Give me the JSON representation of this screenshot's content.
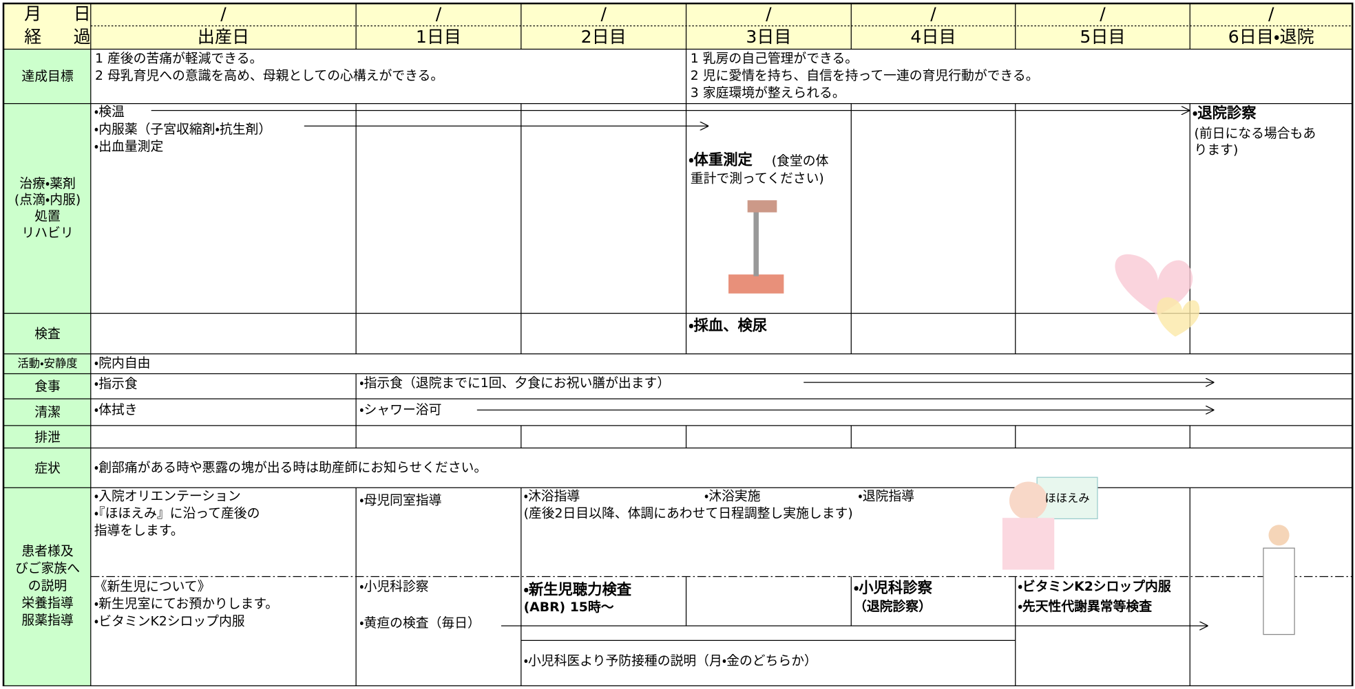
{
  "header": {
    "month": "月",
    "day": "日",
    "course": [
      "経",
      "過"
    ],
    "dates": [
      "/",
      "/",
      "/",
      "/",
      "/",
      "/",
      "/"
    ],
    "days": [
      "出産日",
      "1日目",
      "2日目",
      "3日目",
      "4日目",
      "5日目",
      "6日目・退院"
    ]
  },
  "goals": {
    "label": "達成目標",
    "left": [
      "1 産後の苦痛が軽減できる。",
      "2 母乳育児への意識を高め、母親としての心構えができる。"
    ],
    "right": [
      "1 乳房の自己管理ができる。",
      "2 児に愛情を持ち、自信を持って一連の育児行動ができる。",
      "3 家庭環境が整えられる。"
    ]
  },
  "treatment": {
    "label": [
      "治療・薬剤",
      "(点滴・内服)",
      "処置",
      "リハビリ"
    ],
    "day0": [
      "・検温",
      "・内服薬（子宮収縮剤・抗生剤）",
      "・出血量測定"
    ],
    "day3_title": "・体重測定",
    "day3": [
      "(食堂の体",
      "重計で測ってください)"
    ],
    "day6_title": "・退院診察",
    "day6": [
      "(前日になる場合もあ",
      "ります)"
    ]
  },
  "tests": {
    "label": "検査",
    "day3": "・採血、検尿"
  },
  "activity": {
    "label": "活動・安静度",
    "text": "・院内自由"
  },
  "meals": {
    "label": "食事",
    "day0": "・指示食",
    "day1": "・指示食（退院までに1回、夕食にお祝い膳が出ます）"
  },
  "hygiene": {
    "label": "清潔",
    "day0": "・体拭き",
    "day1": "・シャワー浴可"
  },
  "excretion": {
    "label": "排泄"
  },
  "symptoms": {
    "label": "症状",
    "text": "・創部痛がある時や悪露の塊が出る時は助産師にお知らせください。"
  },
  "explanation": {
    "label": [
      "患者様及",
      "びご家族へ",
      "の説明",
      "栄養指導",
      "服薬指導"
    ],
    "mother": {
      "day0": [
        "・入院オリエンテーション",
        "・『ほほえみ』に沿って産後の",
        "指導をします。"
      ],
      "day1": "・母児同室指導",
      "day2": "・沐浴指導",
      "day3": "・沐浴実施",
      "day4": "・退院指導",
      "note": "(産後2日目以降、体調にあわせて日程調整し実施します)",
      "sign": "ほほえみ"
    },
    "baby": {
      "day0": [
        "《新生児について》",
        "・新生児室にてお預かりします。",
        "・ビタミンK2シロップ内服"
      ],
      "day1": [
        "・小児科診察",
        "・黄疸の検査（毎日）"
      ],
      "day2_title": "・新生児聴力検査",
      "day2": "(ABR) 15時〜",
      "day4_title": "・小児科診察",
      "day4": "（退院診察）",
      "day5": [
        "・ビタミンK2シロップ内服",
        "・先天性代謝異常等検査"
      ],
      "bottom": "・小児科医より予防接種の説明（月・金のどちらか）"
    }
  }
}
